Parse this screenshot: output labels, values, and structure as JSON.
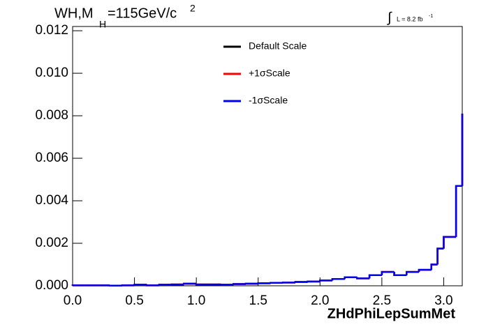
{
  "chart_data": {
    "type": "step",
    "title_parts": [
      "WH,M",
      "H",
      "=115GeV/c",
      "2"
    ],
    "annotation_parts": [
      "∫",
      "L = 8.2 fb",
      "-1"
    ],
    "x_label": "ZHdPhiLepSumMet",
    "bins": [
      0,
      0.1,
      0.2,
      0.3,
      0.4,
      0.5,
      0.6,
      0.7,
      0.8,
      0.9,
      1.0,
      1.1,
      1.2,
      1.3,
      1.4,
      1.5,
      1.6,
      1.7,
      1.8,
      1.9,
      2.0,
      2.1,
      2.2,
      2.3,
      2.4,
      2.5,
      2.6,
      2.7,
      2.8,
      2.9,
      2.95,
      3.0,
      3.1,
      3.15
    ],
    "series": [
      {
        "name": "Default Scale",
        "color": "#000000",
        "values": [
          2e-05,
          2e-05,
          2e-05,
          1e-05,
          2e-05,
          5e-05,
          2e-05,
          5e-05,
          6e-05,
          0.0001,
          6e-05,
          6e-05,
          5e-05,
          8e-05,
          0.0001,
          0.00012,
          0.00014,
          0.00015,
          0.00018,
          0.0002,
          0.00025,
          0.00032,
          0.0004,
          0.00035,
          0.0005,
          0.00065,
          0.0005,
          0.00065,
          0.00075,
          0.001,
          0.00175,
          0.0023,
          0.0047,
          0.0081
        ]
      },
      {
        "name": "+1σScale",
        "color": "#ff0000",
        "values": [
          2e-05,
          2e-05,
          2e-05,
          1e-05,
          2e-05,
          5e-05,
          2e-05,
          5e-05,
          6e-05,
          0.0001,
          6e-05,
          6e-05,
          5e-05,
          8e-05,
          0.0001,
          0.00012,
          0.00014,
          0.00015,
          0.00018,
          0.0002,
          0.00025,
          0.00032,
          0.0004,
          0.00035,
          0.0005,
          0.00065,
          0.0005,
          0.00065,
          0.00075,
          0.001,
          0.00175,
          0.0023,
          0.0047,
          0.0081
        ]
      },
      {
        "name": "-1σScale",
        "color": "#0000ee",
        "values": [
          2e-05,
          2e-05,
          2e-05,
          1e-05,
          2e-05,
          5e-05,
          2e-05,
          5e-05,
          6e-05,
          0.0001,
          6e-05,
          6e-05,
          5e-05,
          8e-05,
          0.0001,
          0.00012,
          0.00014,
          0.00015,
          0.00018,
          0.0002,
          0.00025,
          0.00032,
          0.0004,
          0.00035,
          0.0005,
          0.00065,
          0.0005,
          0.00065,
          0.00075,
          0.001,
          0.00175,
          0.0023,
          0.0047,
          0.0081
        ]
      }
    ],
    "xlim": [
      0,
      3.15
    ],
    "ylim": [
      0,
      0.0122
    ],
    "xticks": [
      {
        "value": 0,
        "label": "0.0"
      },
      {
        "value": 0.5,
        "label": "0.5"
      },
      {
        "value": 1,
        "label": "1.0"
      },
      {
        "value": 1.5,
        "label": "1.5"
      },
      {
        "value": 2,
        "label": "2.0"
      },
      {
        "value": 2.5,
        "label": "2.5"
      },
      {
        "value": 3,
        "label": "3.0"
      }
    ],
    "yticks": [
      {
        "value": 0,
        "label": "0.000"
      },
      {
        "value": 0.002,
        "label": "0.002"
      },
      {
        "value": 0.004,
        "label": "0.004"
      },
      {
        "value": 0.006,
        "label": "0.006"
      },
      {
        "value": 0.008,
        "label": "0.008"
      },
      {
        "value": 0.01,
        "label": "0.010"
      },
      {
        "value": 0.012,
        "label": "0.012"
      }
    ]
  }
}
